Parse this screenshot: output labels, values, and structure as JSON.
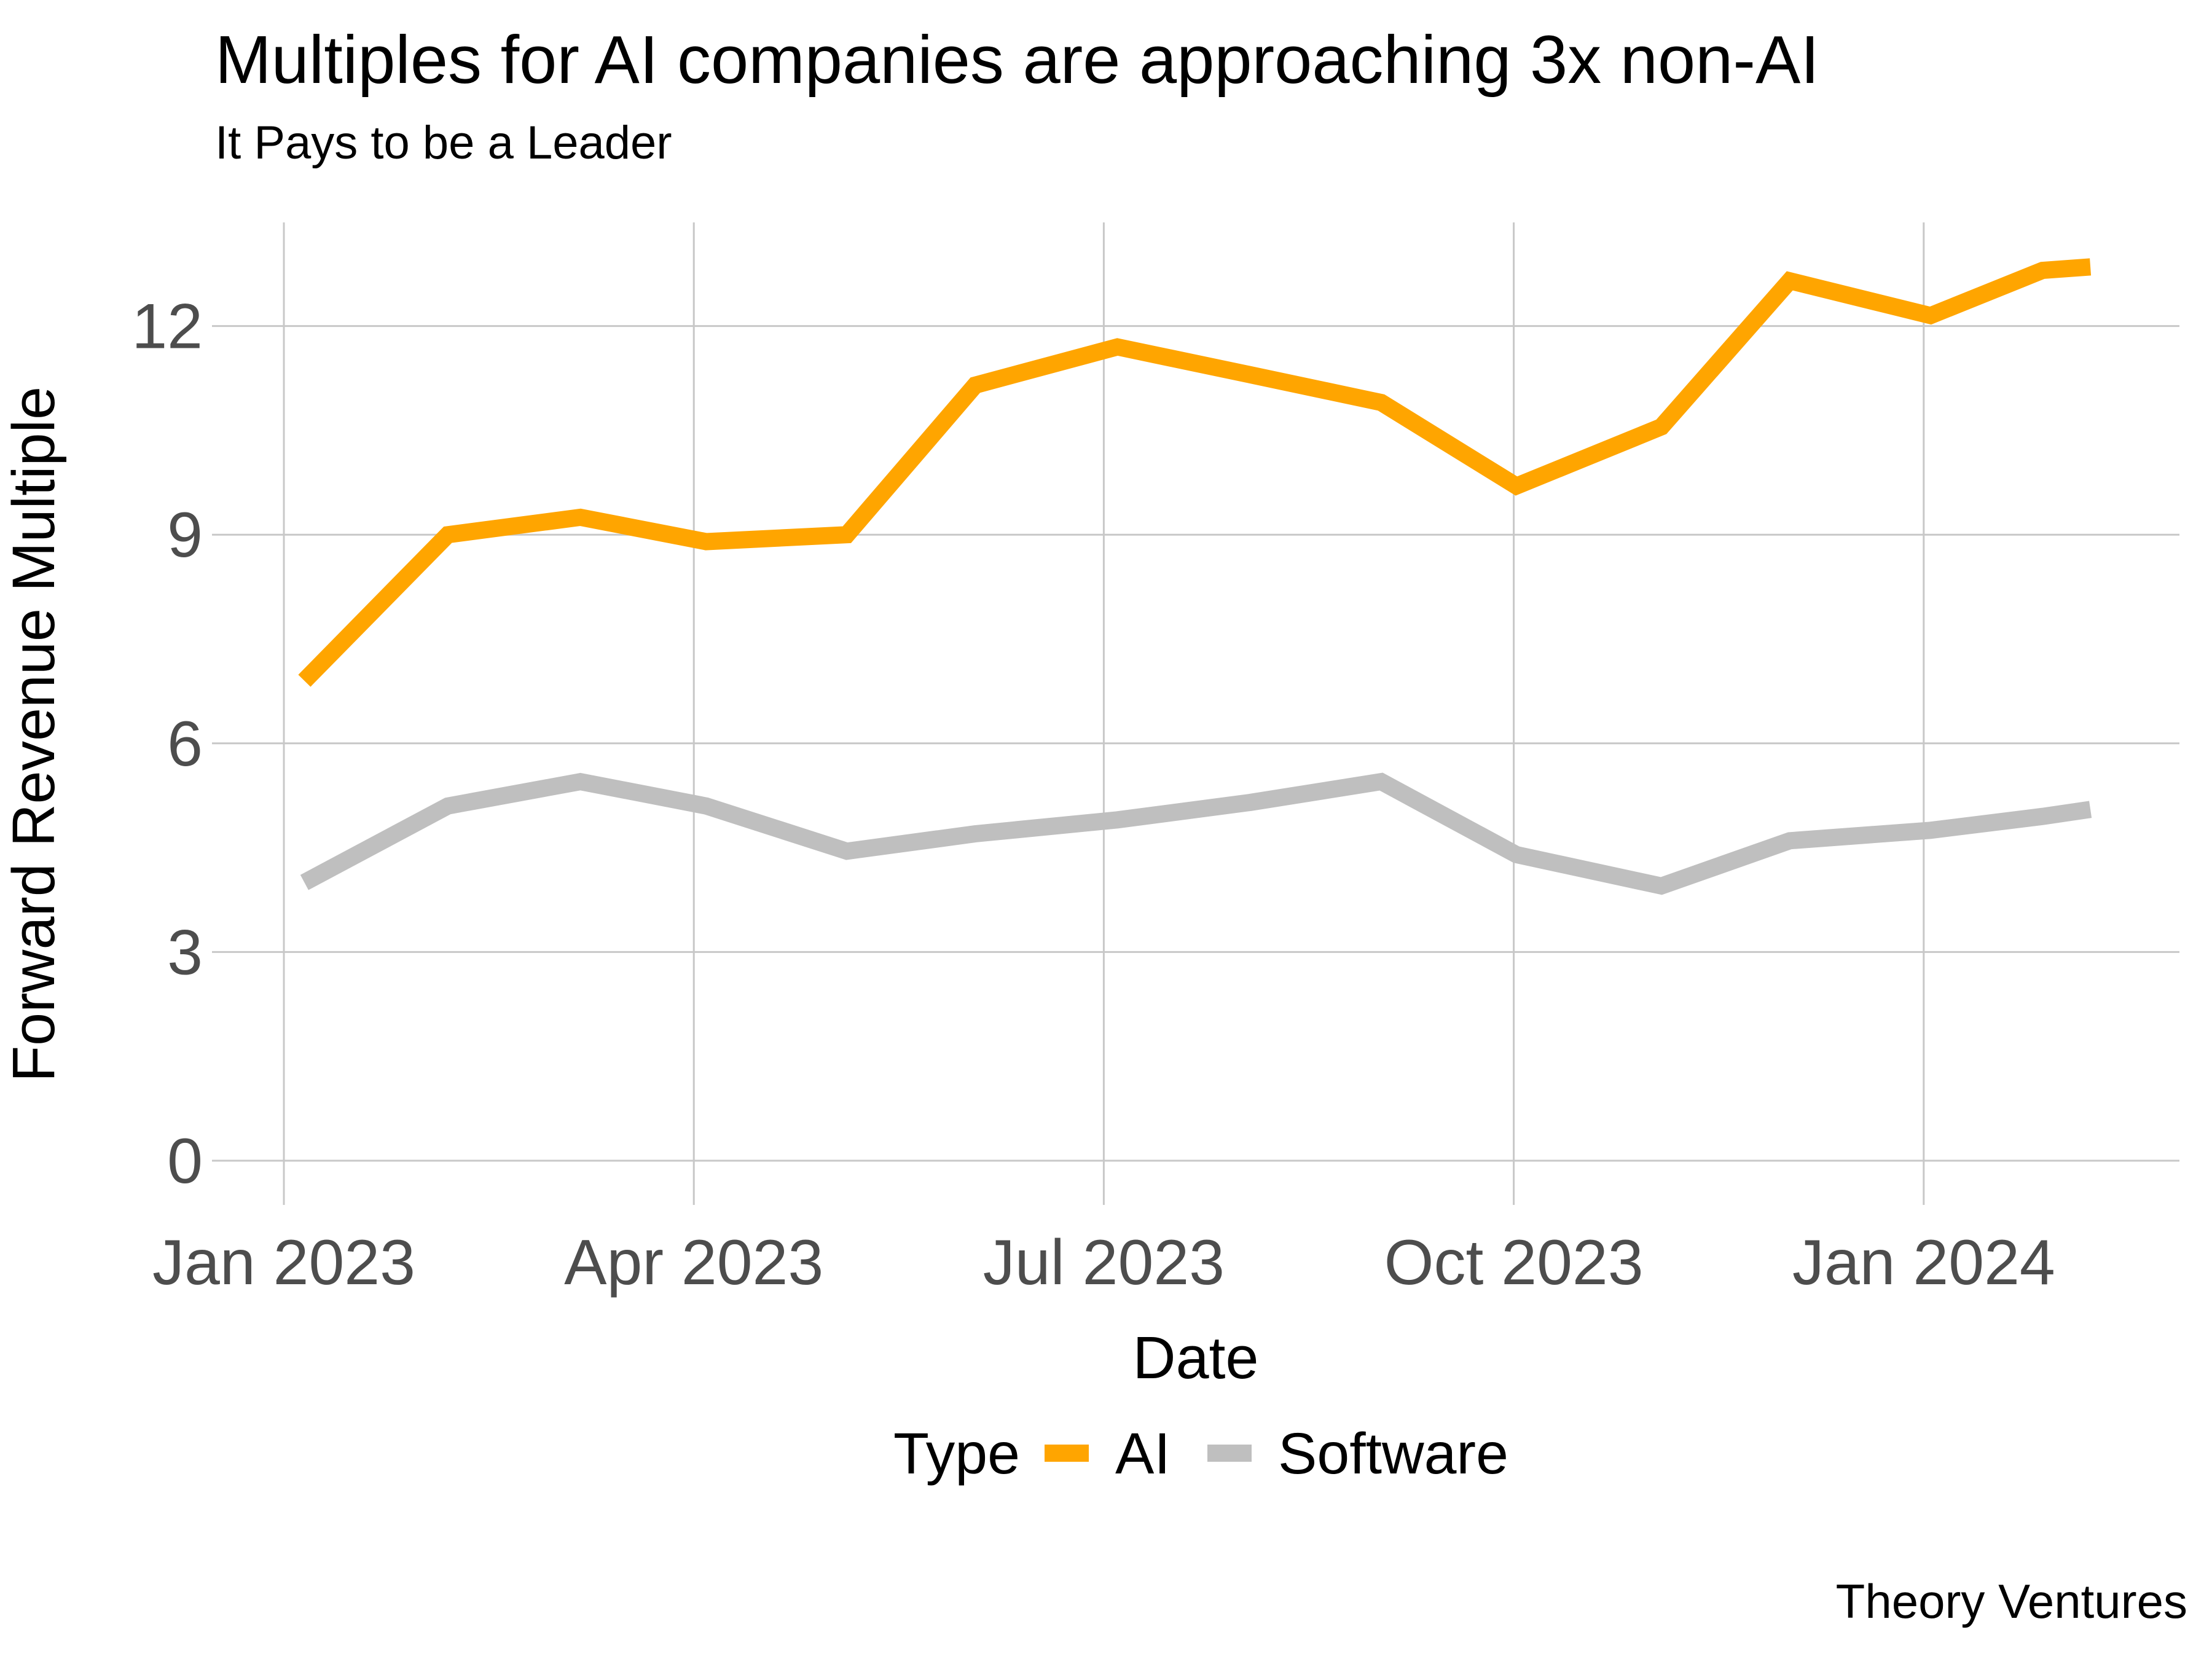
{
  "header": {
    "title": "Multiples for AI companies are approaching 3x non-AI",
    "subtitle": "It Pays to be a Leader"
  },
  "source_note": "Theory Ventures",
  "legend": {
    "title": "Type",
    "items": [
      {
        "label": "AI",
        "color": "#FFA500"
      },
      {
        "label": "Software",
        "color": "#BFBFBF"
      }
    ]
  },
  "chart_data": {
    "type": "line",
    "title": "Multiples for AI companies are approaching 3x non-AI",
    "subtitle": "It Pays to be a Leader",
    "xlabel": "Date",
    "ylabel": "Forward Revenue Multiple",
    "grid": true,
    "legend_position": "bottom",
    "ylim": [
      0,
      13.5
    ],
    "xlim_months": [
      -0.55,
      13.9
    ],
    "yticks": [
      0,
      3,
      6,
      9,
      12
    ],
    "xticks": [
      {
        "m": 0,
        "label": "Jan 2023"
      },
      {
        "m": 3,
        "label": "Apr 2023"
      },
      {
        "m": 6,
        "label": "Jul 2023"
      },
      {
        "m": 9,
        "label": "Oct 2023"
      },
      {
        "m": 12,
        "label": "Jan 2024"
      }
    ],
    "x_months_since_jan2023": [
      0.15,
      1.2,
      2.17,
      3.09,
      4.12,
      5.06,
      6.1,
      7.07,
      8.03,
      9.02,
      10.08,
      11.02,
      12.05,
      12.87,
      13.22
    ],
    "point_dates_approx": [
      "Jan 2023",
      "Feb 2023",
      "Mar 2023",
      "Apr 2023",
      "May 2023",
      "Jun 2023",
      "Jul 2023",
      "Aug 2023",
      "Sep 2023",
      "Oct 2023",
      "Nov 2023",
      "Dec 2023",
      "Jan 2024",
      "Late Jan 2024",
      "Feb 2024"
    ],
    "series": [
      {
        "name": "Software",
        "color": "#BFBFBF",
        "values": [
          4.0,
          5.1,
          5.45,
          5.1,
          4.45,
          4.7,
          4.9,
          5.15,
          5.45,
          4.4,
          3.95,
          4.6,
          4.75,
          4.95,
          5.05
        ]
      },
      {
        "name": "AI",
        "color": "#FFA500",
        "values": [
          6.9,
          9.0,
          9.25,
          8.9,
          9.0,
          11.15,
          11.7,
          11.3,
          10.9,
          9.7,
          10.55,
          12.65,
          12.15,
          12.8,
          12.85
        ]
      }
    ]
  }
}
